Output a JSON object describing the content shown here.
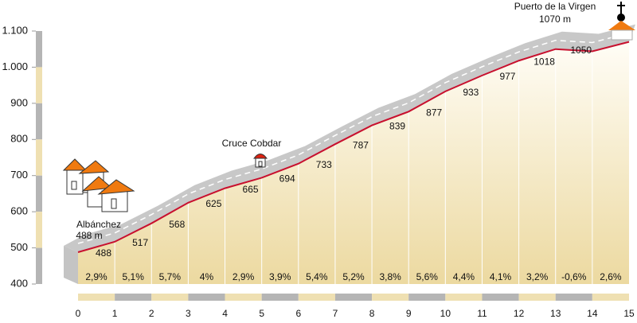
{
  "chart_data": {
    "type": "area",
    "x": [
      0,
      1,
      2,
      3,
      4,
      5,
      6,
      7,
      8,
      9,
      10,
      11,
      12,
      13,
      14,
      15
    ],
    "values": [
      488,
      517,
      568,
      625,
      665,
      694,
      733,
      787,
      839,
      877,
      933,
      977,
      1018,
      1050,
      1044,
      1070
    ],
    "value_labels": [
      "488",
      "517",
      "568",
      "625",
      "665",
      "694",
      "733",
      "787",
      "839",
      "877",
      "933",
      "977",
      "1018",
      "1050",
      null,
      null
    ],
    "gradient_labels": [
      "2,9%",
      "5,1%",
      "5,7%",
      "4%",
      "2,9%",
      "3,9%",
      "5,4%",
      "5,2%",
      "3,8%",
      "5,6%",
      "4,4%",
      "4,1%",
      "3,2%",
      "-0,6%",
      "2,6%"
    ],
    "color": "#c8102e",
    "xlim": [
      0,
      15
    ],
    "xticks": [
      0,
      1,
      2,
      3,
      4,
      5,
      6,
      7,
      8,
      9,
      10,
      11,
      12,
      13,
      14,
      15
    ],
    "ylim": [
      400,
      1100
    ],
    "yticks": [
      {
        "value": 1100,
        "label": "1.100"
      },
      {
        "value": 1000,
        "label": "1.000"
      },
      900,
      800,
      700,
      600,
      500,
      400
    ],
    "annotations": {
      "start_name": "Albánchez",
      "start_elevation": "488 m",
      "mid_name": "Cruce Cobdar",
      "top_name": "Puerto de la Virgen",
      "top_elevation": "1070 m"
    }
  }
}
